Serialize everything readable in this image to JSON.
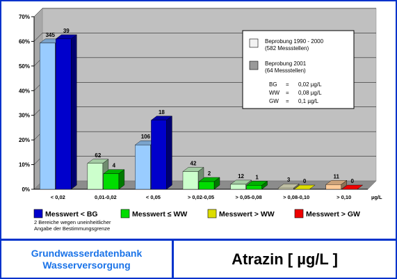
{
  "colors": {
    "frame": "#0033cc",
    "plot_bg": "#c0c0c0",
    "footer_left_text": "#1a73e8",
    "lt_bg": "#0000cc",
    "le_vww": "#00dd00",
    "gt_vww": "#dddd00",
    "gt_gw": "#ee0000",
    "s1990_lt_bg": "#99ccff",
    "s1990_vww": "#ccffcc",
    "s1990_gw_low": "#eeeecc",
    "s1990_gw_high": "#ffcc99"
  },
  "chart_data": {
    "type": "bar",
    "categories": [
      "< 0,02",
      "0,01-0,02",
      "< 0,05",
      "> 0,02-0,05",
      "> 0,05-0,08",
      "> 0,08-0,10",
      "> 0,10"
    ],
    "category_unit": "µg/L",
    "ylim": [
      0,
      70
    ],
    "yticks": [
      "0%",
      "10%",
      "20%",
      "30%",
      "40%",
      "50%",
      "60%",
      "70%"
    ],
    "series": [
      {
        "name": "Beprobung 1990 - 2000",
        "values": [
          59.3,
          10.5,
          18.0,
          7.2,
          2.0,
          0.5,
          1.9
        ],
        "labels": [
          "345",
          "62",
          "106",
          "42",
          "12",
          "3",
          "11"
        ],
        "colors": [
          "#99ccff",
          "#ccffcc",
          "#99ccff",
          "#ccffcc",
          "#ccffcc",
          "#eeeecc",
          "#ffcc99"
        ]
      },
      {
        "name": "Beprobung 2001",
        "values": [
          61.0,
          6.3,
          28.0,
          3.1,
          1.6,
          0.0,
          0.0
        ],
        "labels": [
          "39",
          "4",
          "18",
          "2",
          "1",
          "0",
          "0"
        ],
        "colors": [
          "#0000cc",
          "#00dd00",
          "#0000cc",
          "#00dd00",
          "#00dd00",
          "#dddd00",
          "#ee0000"
        ]
      }
    ],
    "legend_box": {
      "entries": [
        {
          "lines": [
            "Beprobung 1990 - 2000",
            "(582 Messstellen)"
          ],
          "swatch": "#f2f2f2"
        },
        {
          "lines": [
            "Beprobung 2001",
            "(64 Messstellen)"
          ],
          "swatch": "#999999"
        }
      ],
      "definitions": [
        {
          "key": "BG",
          "eq": "=",
          "value": "0,02 µg/L"
        },
        {
          "key": "WW",
          "eq": "=",
          "value": "0,08 µg/L"
        },
        {
          "key": "GW",
          "eq": "=",
          "value": "0,1 µg/L"
        }
      ]
    },
    "category_legend": [
      {
        "label": "Messwert < BG",
        "color": "#0000cc"
      },
      {
        "label": "Messwert ≤ WW",
        "color": "#00dd00"
      },
      {
        "label": "Messwert > WW",
        "color": "#dddd00"
      },
      {
        "label": "Messwert > GW",
        "color": "#ee0000"
      }
    ],
    "footnote": [
      "2 Bereiche wegen uneinheitlicher",
      "Angabe der Bestimmungsgrenze"
    ]
  },
  "footer": {
    "left_line1": "Grundwasserdatenbank",
    "left_line2": "Wasserversorgung",
    "title": "Atrazin [ µg/L ]"
  }
}
